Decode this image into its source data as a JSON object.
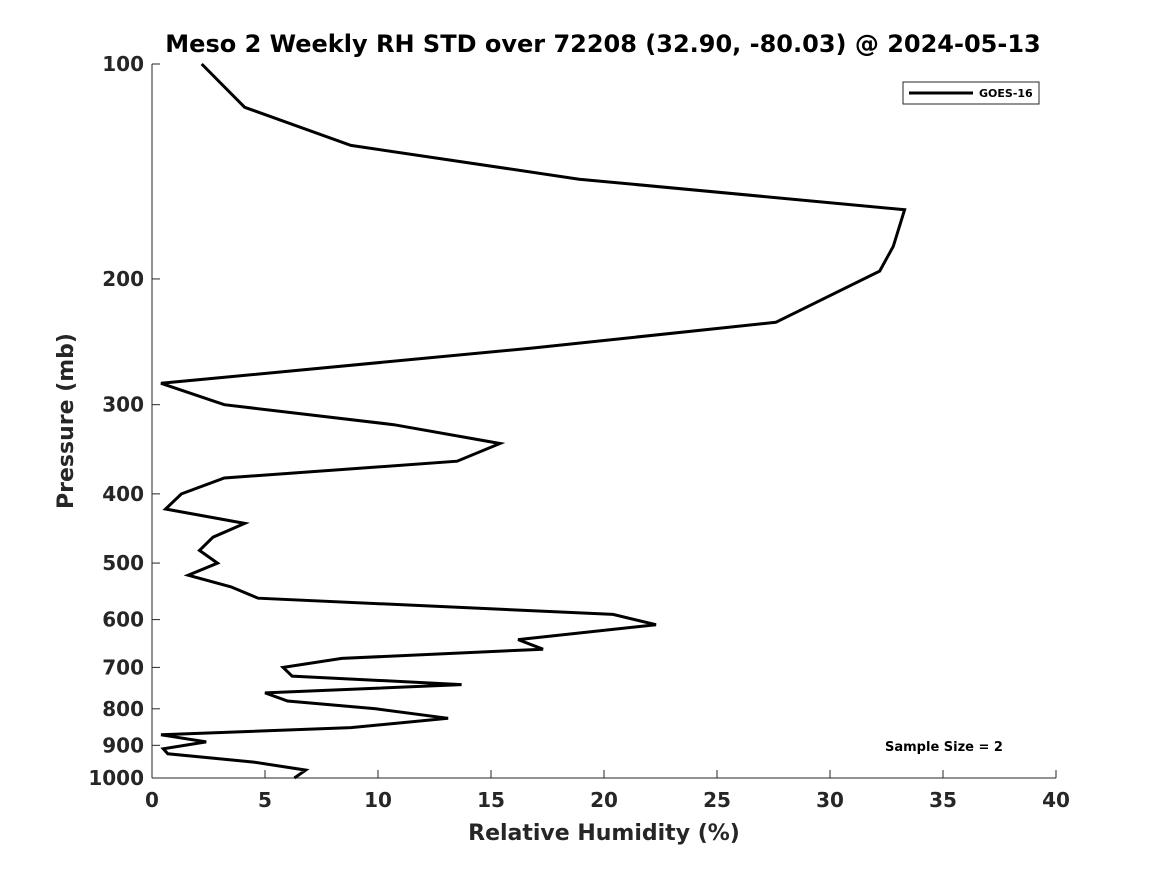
{
  "chart_data": {
    "type": "line",
    "title": "Meso 2 Weekly RH STD over 72208 (32.90, -80.03) @ 2024-05-13",
    "xlabel": "Relative Humidity (%)",
    "ylabel": "Pressure (mb)",
    "xlim": [
      0,
      40
    ],
    "ylim": [
      100,
      1000
    ],
    "y_scale": "log",
    "y_reversed": true,
    "grid": false,
    "x_ticks": [
      0,
      5,
      10,
      15,
      20,
      25,
      30,
      35,
      40
    ],
    "x_tick_labels": [
      "0",
      "5",
      "10",
      "15",
      "20",
      "25",
      "30",
      "35",
      "40"
    ],
    "y_ticks": [
      100,
      200,
      300,
      400,
      500,
      600,
      700,
      800,
      900,
      1000
    ],
    "y_tick_labels": [
      "100",
      "200",
      "300",
      "400",
      "500",
      "600",
      "700",
      "800",
      "900",
      "1000"
    ],
    "legend_position": "top-right",
    "series": [
      {
        "name": "GOES-16",
        "color": "#000000",
        "x": [
          2.2,
          4.1,
          8.8,
          18.9,
          33.3,
          32.8,
          32.2,
          27.6,
          16.8,
          0.4,
          3.2,
          10.7,
          15.4,
          13.5,
          3.2,
          1.3,
          0.6,
          4.1,
          2.7,
          2.1,
          2.9,
          1.6,
          3.5,
          4.7,
          20.4,
          22.3,
          16.2,
          17.3,
          8.4,
          5.8,
          6.2,
          13.7,
          5.0,
          6.0,
          9.9,
          13.1,
          8.8,
          0.4,
          2.4,
          0.5,
          0.7,
          4.5,
          6.8,
          6.3
        ],
        "y": [
          100,
          115,
          130,
          145,
          160,
          180,
          195,
          230,
          250,
          280,
          300,
          320,
          340,
          360,
          380,
          400,
          420,
          440,
          460,
          480,
          500,
          520,
          540,
          560,
          590,
          610,
          640,
          660,
          680,
          700,
          720,
          740,
          760,
          780,
          800,
          825,
          850,
          870,
          890,
          910,
          925,
          950,
          975,
          1000
        ]
      }
    ],
    "annotations": [
      "Sample Size = 2"
    ]
  }
}
